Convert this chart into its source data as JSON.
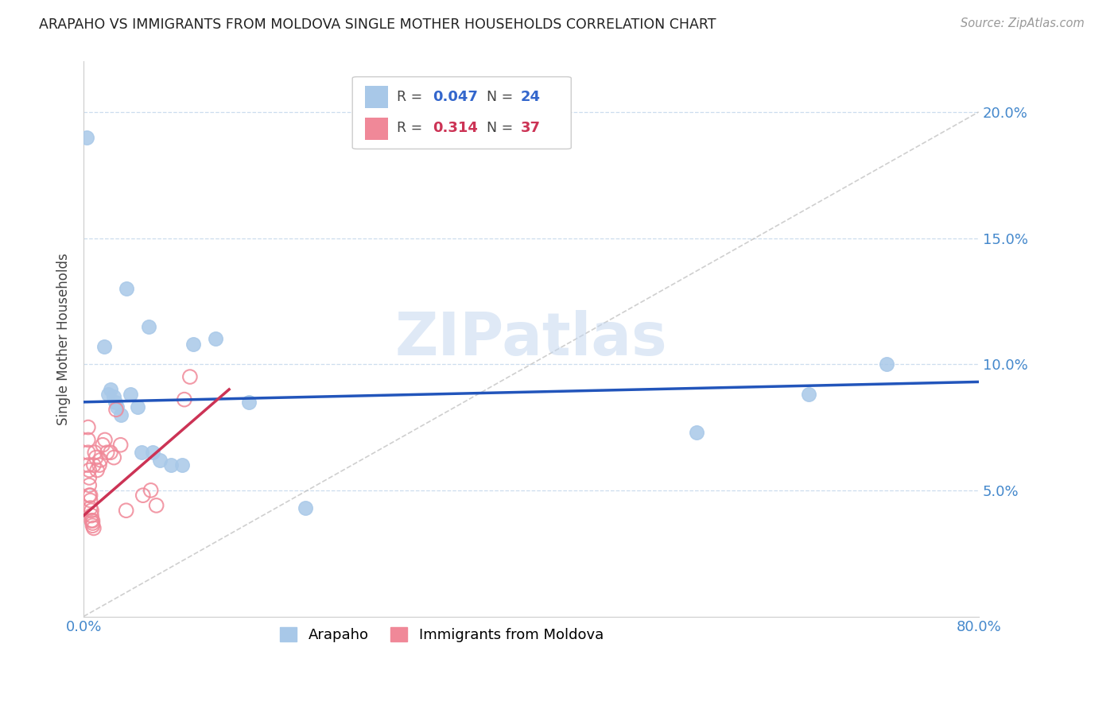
{
  "title": "ARAPAHO VS IMMIGRANTS FROM MOLDOVA SINGLE MOTHER HOUSEHOLDS CORRELATION CHART",
  "source": "Source: ZipAtlas.com",
  "ylabel": "Single Mother Households",
  "xlim": [
    0,
    0.8
  ],
  "ylim": [
    0,
    0.22
  ],
  "yticks": [
    0.05,
    0.1,
    0.15,
    0.2
  ],
  "ytick_labels": [
    "5.0%",
    "10.0%",
    "15.0%",
    "20.0%"
  ],
  "xticks": [
    0.0,
    0.1,
    0.2,
    0.3,
    0.4,
    0.5,
    0.6,
    0.7,
    0.8
  ],
  "xtick_labels": [
    "0.0%",
    "",
    "",
    "",
    "",
    "",
    "",
    "",
    "80.0%"
  ],
  "arapaho_color": "#a8c8e8",
  "moldova_color": "#f08898",
  "trendline_arapaho_color": "#2255bb",
  "trendline_moldova_color": "#cc3355",
  "diagonal_color": "#bbbbbb",
  "watermark": "ZIPatlas",
  "arapaho_x": [
    0.003,
    0.018,
    0.022,
    0.024,
    0.027,
    0.028,
    0.03,
    0.033,
    0.038,
    0.042,
    0.048,
    0.052,
    0.058,
    0.062,
    0.068,
    0.078,
    0.088,
    0.098,
    0.118,
    0.148,
    0.198,
    0.548,
    0.648,
    0.718
  ],
  "arapaho_y": [
    0.19,
    0.107,
    0.088,
    0.09,
    0.087,
    0.085,
    0.083,
    0.08,
    0.13,
    0.088,
    0.083,
    0.065,
    0.115,
    0.065,
    0.062,
    0.06,
    0.06,
    0.108,
    0.11,
    0.085,
    0.043,
    0.073,
    0.088,
    0.1
  ],
  "moldova_x": [
    0.004,
    0.004,
    0.004,
    0.004,
    0.005,
    0.005,
    0.005,
    0.005,
    0.006,
    0.006,
    0.006,
    0.007,
    0.007,
    0.007,
    0.008,
    0.008,
    0.008,
    0.009,
    0.009,
    0.01,
    0.011,
    0.012,
    0.014,
    0.015,
    0.017,
    0.019,
    0.021,
    0.024,
    0.027,
    0.029,
    0.033,
    0.038,
    0.053,
    0.06,
    0.065,
    0.09,
    0.095
  ],
  "moldova_y": [
    0.075,
    0.07,
    0.065,
    0.06,
    0.058,
    0.055,
    0.052,
    0.048,
    0.048,
    0.046,
    0.043,
    0.042,
    0.04,
    0.038,
    0.038,
    0.037,
    0.036,
    0.035,
    0.06,
    0.065,
    0.063,
    0.058,
    0.06,
    0.062,
    0.068,
    0.07,
    0.065,
    0.065,
    0.063,
    0.082,
    0.068,
    0.042,
    0.048,
    0.05,
    0.044,
    0.086,
    0.095
  ],
  "arapaho_trendline_x": [
    0.0,
    0.8
  ],
  "arapaho_trendline_y": [
    0.085,
    0.093
  ],
  "moldova_trendline_x": [
    0.0,
    0.13
  ],
  "moldova_trendline_y": [
    0.04,
    0.09
  ]
}
